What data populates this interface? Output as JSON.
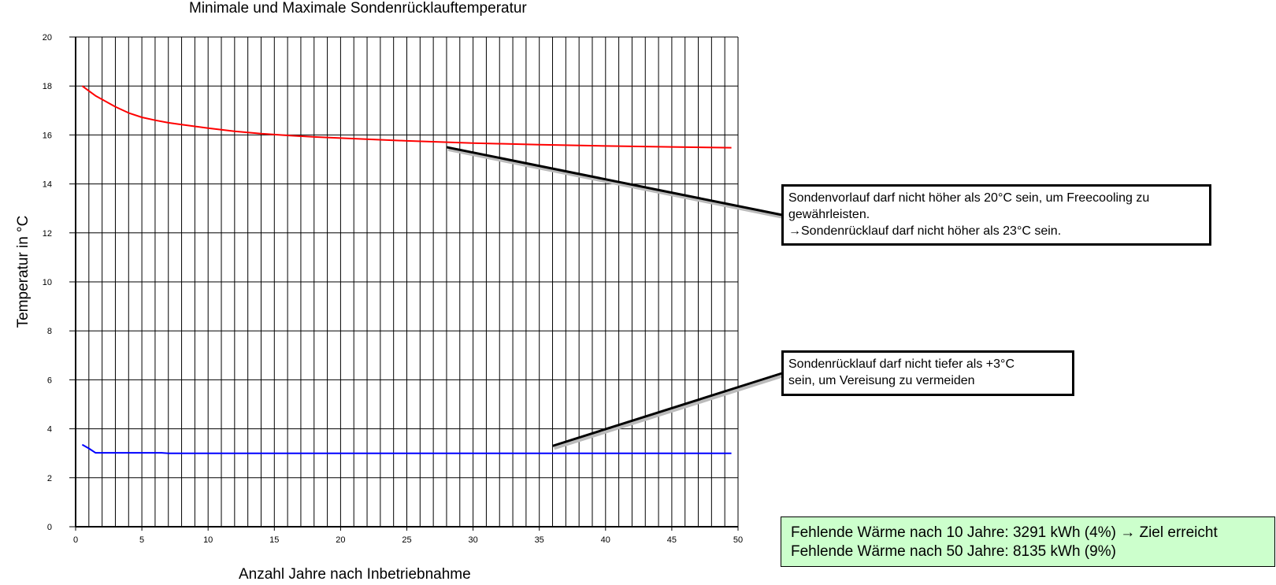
{
  "chart_data": {
    "type": "line",
    "title": "Minimale und Maximale Sondenrücklauftemperatur",
    "xlabel": "Anzahl Jahre nach Inbetriebnahme",
    "ylabel": "Temperatur in °C",
    "xlim": [
      0,
      50
    ],
    "ylim": [
      0,
      20
    ],
    "x_ticks": [
      0,
      5,
      10,
      15,
      20,
      25,
      30,
      35,
      40,
      45,
      50
    ],
    "y_ticks": [
      0,
      2,
      4,
      6,
      8,
      10,
      12,
      14,
      16,
      18,
      20
    ],
    "grid": true,
    "legend": "none",
    "series": [
      {
        "color": "#ff0000",
        "x": [
          0.5,
          1,
          1.5,
          2,
          3,
          4,
          5,
          6,
          7,
          8,
          9,
          10,
          12,
          14,
          16,
          18,
          20,
          25,
          30,
          35,
          40,
          45,
          49.5
        ],
        "y": [
          18.0,
          17.8,
          17.6,
          17.45,
          17.15,
          16.9,
          16.72,
          16.6,
          16.5,
          16.42,
          16.35,
          16.28,
          16.15,
          16.05,
          15.98,
          15.92,
          15.87,
          15.76,
          15.67,
          15.6,
          15.55,
          15.51,
          15.48
        ]
      },
      {
        "color": "#0000ff",
        "x": [
          0.5,
          1,
          1.5,
          2,
          3,
          5,
          6.5,
          7,
          10,
          20,
          30,
          40,
          49.5
        ],
        "y": [
          3.35,
          3.2,
          3.02,
          3.02,
          3.02,
          3.02,
          3.02,
          3.0,
          3.0,
          3.0,
          3.0,
          3.0,
          3.0
        ]
      }
    ],
    "annotations": [
      {
        "lines": [
          "Sondenvorlauf darf nicht höher als 20°C sein, um Freecooling zu",
          "gewährleisten.",
          "→Sondenrücklauf darf nicht höher als 23°C sein."
        ],
        "pointer": {
          "x": 28,
          "y": 15.5
        }
      },
      {
        "lines": [
          "Sondenrücklauf darf nicht tiefer als +3°C",
          "sein, um Vereisung zu vermeiden"
        ],
        "pointer": {
          "x": 36,
          "y": 3.3
        }
      }
    ]
  },
  "summary": {
    "line1": "Fehlende Wärme nach 10 Jahre: 3291 kWh (4%) → Ziel erreicht",
    "line2": "Fehlende Wärme nach 50 Jahre: 8135 kWh (9%)",
    "background": "#ccffcc"
  }
}
